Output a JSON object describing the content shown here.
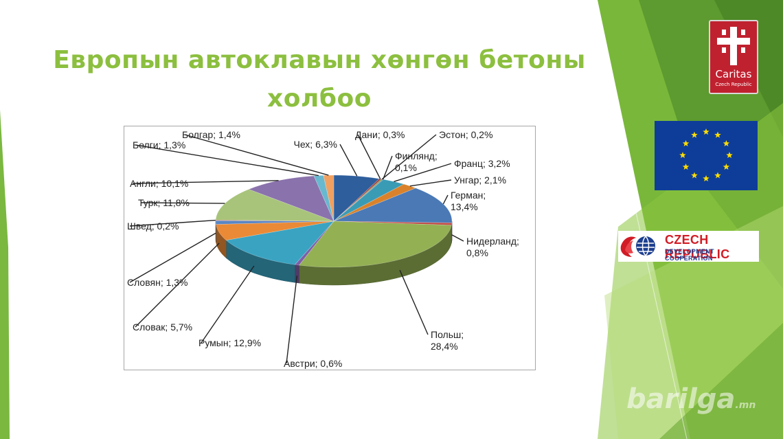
{
  "title": "Европын автоклавын хөнгөн бетоны холбоо",
  "chart_data": {
    "type": "pie",
    "title": "",
    "slices": [
      {
        "name": "Чех",
        "value": 6.3,
        "label": "Чех; 6,3%",
        "color": "#2e5e9c"
      },
      {
        "name": "Дани",
        "value": 0.3,
        "label": "Дани; 0,3%",
        "color": "#a63b3b"
      },
      {
        "name": "Эстон",
        "value": 0.2,
        "label": "Эстон; 0,2%",
        "color": "#7a9a3a"
      },
      {
        "name": "Финлянд",
        "value": 0.1,
        "label": "Финлянд; 0,1%",
        "color": "#6b4f96"
      },
      {
        "name": "Франц",
        "value": 3.2,
        "label": "Франц; 3,2%",
        "color": "#3a9bb5"
      },
      {
        "name": "Унгар",
        "value": 2.1,
        "label": "Унгар; 2,1%",
        "color": "#d9822b"
      },
      {
        "name": "Герман",
        "value": 13.4,
        "label": "Герман; 13,4%",
        "color": "#4a79b6"
      },
      {
        "name": "Нидерланд",
        "value": 0.8,
        "label": "Нидерланд; 0,8%",
        "color": "#bf4a46"
      },
      {
        "name": "Польш",
        "value": 28.4,
        "label": "Польш; 28,4%",
        "color": "#93b053"
      },
      {
        "name": "Австри",
        "value": 0.6,
        "label": "Австри; 0,6%",
        "color": "#7d5fa8"
      },
      {
        "name": "Румын",
        "value": 12.9,
        "label": "Румын; 12,9%",
        "color": "#3aa3c2"
      },
      {
        "name": "Словак",
        "value": 5.7,
        "label": "Словак; 5,7%",
        "color": "#ea8a36"
      },
      {
        "name": "Словян",
        "value": 1.3,
        "label": "Словян; 1,3%",
        "color": "#5a86c4"
      },
      {
        "name": "Швед",
        "value": 0.2,
        "label": "Швед; 0,2%",
        "color": "#c65552"
      },
      {
        "name": "Турк",
        "value": 11.8,
        "label": "Турк; 11,8%",
        "color": "#a8c47a"
      },
      {
        "name": "Англи",
        "value": 10.1,
        "label": "Англи; 10,1%",
        "color": "#8a72ac"
      },
      {
        "name": "Белги",
        "value": 1.3,
        "label": "Белги; 1,3%",
        "color": "#68b8cf"
      },
      {
        "name": "Болгар",
        "value": 1.4,
        "label": "Болгар; 1,4%",
        "color": "#f0a060"
      }
    ]
  },
  "logos": {
    "caritas": {
      "name": "Caritas",
      "subtitle": "Czech Republic",
      "icon": "caritas-cross-icon"
    },
    "eu": {
      "icon": "eu-flag-icon"
    },
    "czech_dev": {
      "line1": "CZECH REPUBLIC",
      "line2": "DEVELOPMENT COOPERATION",
      "icon": "globe-hands-icon"
    }
  },
  "watermark": {
    "main": "barilga",
    "suffix": ".mn"
  }
}
